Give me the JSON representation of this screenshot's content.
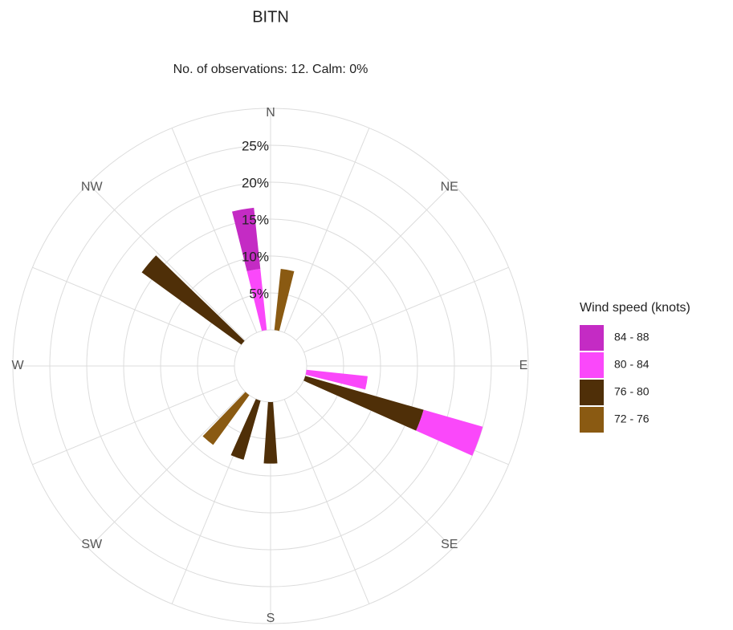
{
  "chart_data": {
    "type": "windrose",
    "title": "BITN",
    "subtitle": "No. of observations: 12. Calm: 0%",
    "compass": [
      "N",
      "NE",
      "E",
      "SE",
      "S",
      "SW",
      "W",
      "NW"
    ],
    "x": [
      10,
      100,
      110,
      180,
      200,
      220,
      310,
      350
    ],
    "xlim": [
      0,
      360
    ],
    "legend_title": "Wind speed (knots)",
    "legend": "right",
    "series": [
      {
        "name": "84 - 88",
        "color": "#c42bc4",
        "values": [
          null,
          null,
          null,
          null,
          null,
          null,
          null,
          8.33
        ]
      },
      {
        "name": "80 - 84",
        "color": "#fa48fa",
        "values": [
          null,
          8.33,
          8.33,
          null,
          null,
          null,
          null,
          8.33
        ]
      },
      {
        "name": "76 - 80",
        "color": "#4f2f08",
        "values": [
          null,
          null,
          16.67,
          8.33,
          8.33,
          null,
          16.67,
          null
        ]
      },
      {
        "name": "72 - 76",
        "color": "#8a5a12",
        "values": [
          8.33,
          null,
          null,
          null,
          null,
          8.33,
          null,
          null
        ]
      }
    ],
    "ylim": [
      0,
      30
    ],
    "yticks": [
      {
        "value": 5,
        "label": "5%"
      },
      {
        "value": 10,
        "label": "10%"
      },
      {
        "value": 15,
        "label": "15%"
      },
      {
        "value": 20,
        "label": "20%"
      },
      {
        "value": 25,
        "label": "25%"
      }
    ],
    "grid": true
  }
}
